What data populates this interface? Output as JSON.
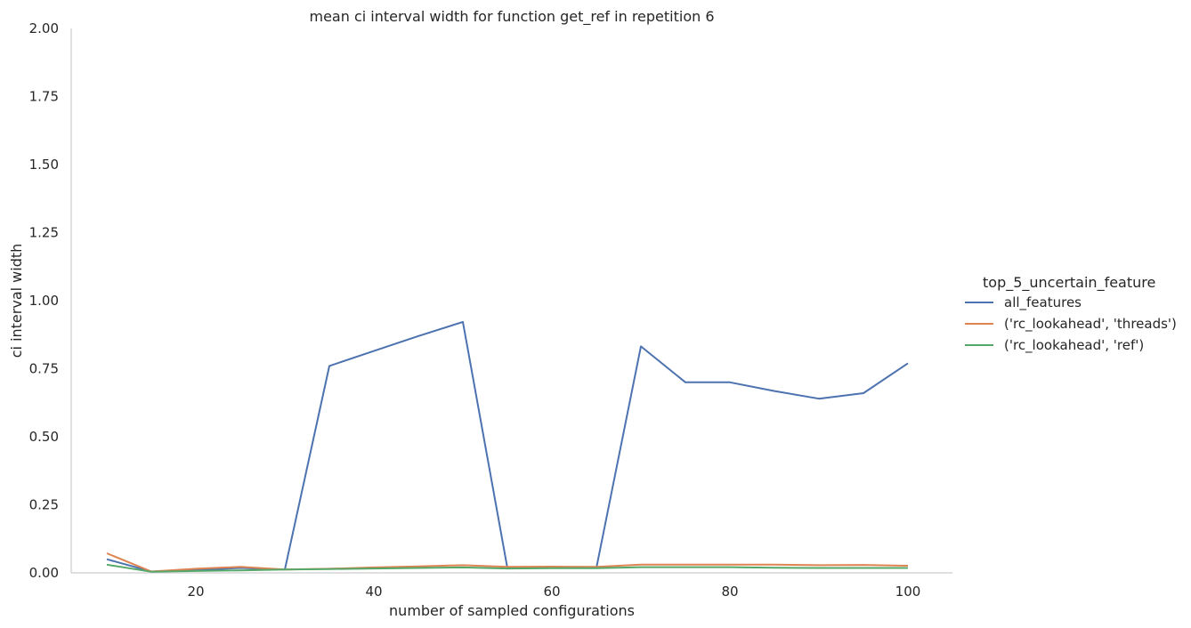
{
  "chart_data": {
    "type": "line",
    "title": "mean ci interval width for function get_ref in repetition 6",
    "xlabel": "number of sampled configurations",
    "ylabel": "ci interval width",
    "xlim": [
      6,
      105
    ],
    "ylim": [
      0,
      2.0
    ],
    "x_ticks": [
      20,
      40,
      60,
      80,
      100
    ],
    "x_tick_labels": [
      "20",
      "40",
      "60",
      "80",
      "100"
    ],
    "y_ticks": [
      0,
      0.25,
      0.5,
      0.75,
      1.0,
      1.25,
      1.5,
      1.75,
      2.0
    ],
    "y_tick_labels": [
      "0.00",
      "0.25",
      "0.50",
      "0.75",
      "1.00",
      "1.25",
      "1.50",
      "1.75",
      "2.00"
    ],
    "grid": false,
    "legend": {
      "title": "top_5_uncertain_feature",
      "placement": "right"
    },
    "x": [
      10,
      15,
      20,
      25,
      30,
      35,
      40,
      45,
      50,
      55,
      60,
      65,
      70,
      75,
      80,
      85,
      90,
      95,
      100
    ],
    "series": [
      {
        "name": "all_features",
        "color": "#4c72b0",
        "values": [
          0.05,
          0.005,
          0.01,
          0.018,
          0.012,
          0.76,
          0.815,
          0.87,
          0.922,
          0.018,
          0.018,
          0.018,
          0.832,
          0.7,
          0.7,
          0.668,
          0.64,
          0.66,
          0.77
        ]
      },
      {
        "name": "('rc_lookahead', 'threads')",
        "color": "#dd8452",
        "values": [
          0.072,
          0.005,
          0.015,
          0.022,
          0.012,
          0.015,
          0.02,
          0.024,
          0.028,
          0.022,
          0.023,
          0.022,
          0.03,
          0.03,
          0.03,
          0.03,
          0.028,
          0.029,
          0.026
        ]
      },
      {
        "name": "('rc_lookahead', 'ref')",
        "color": "#55a868",
        "values": [
          0.03,
          0.004,
          0.007,
          0.009,
          0.012,
          0.014,
          0.016,
          0.018,
          0.02,
          0.016,
          0.017,
          0.017,
          0.021,
          0.021,
          0.021,
          0.019,
          0.018,
          0.018,
          0.018
        ]
      }
    ]
  }
}
